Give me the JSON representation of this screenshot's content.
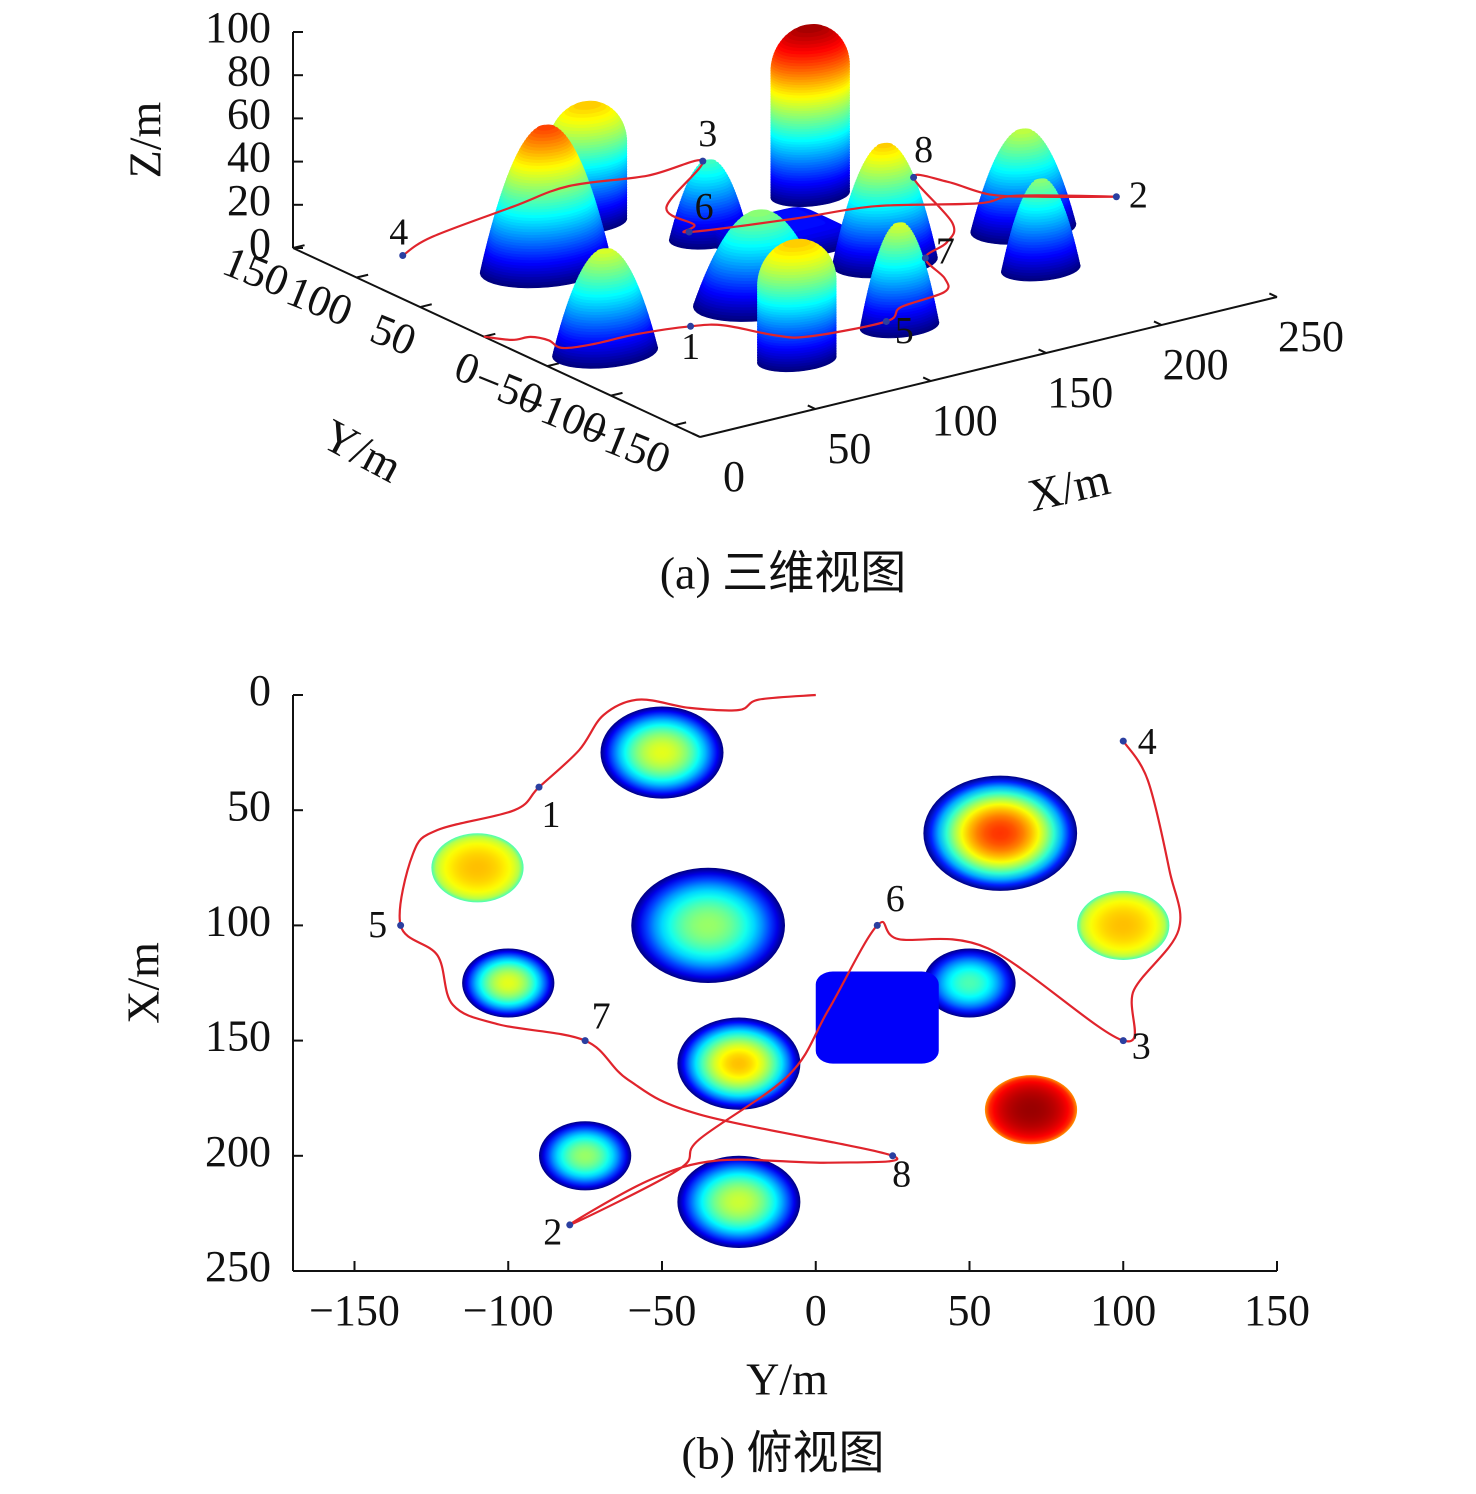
{
  "chart_data": [
    {
      "type": "surface3d",
      "caption": "(a) 三维视图",
      "xlabel": "X/m",
      "ylabel": "Y/m",
      "zlabel": "Z/m",
      "xlim": [
        0,
        250
      ],
      "ylim": [
        -170,
        150
      ],
      "zlim": [
        0,
        100
      ],
      "xticks": [
        0,
        50,
        100,
        150,
        200,
        250
      ],
      "yticks": [
        {
          "value": -150,
          "label": "−150"
        },
        {
          "value": -100,
          "label": "−100"
        },
        {
          "value": -50,
          "label": "−50"
        },
        0,
        50,
        100,
        150
      ],
      "zticks": [
        0,
        20,
        40,
        60,
        80,
        100
      ]
    },
    {
      "type": "topview",
      "caption": "(b) 俯视图",
      "xlabel": "Y/m",
      "ylabel": "X/m",
      "xlim": [
        -170,
        150
      ],
      "ylim": [
        0,
        250
      ],
      "y_inverted": true,
      "xticks": [
        {
          "value": -150,
          "label": "−150"
        },
        {
          "value": -100,
          "label": "−100"
        },
        {
          "value": -50,
          "label": "−50"
        },
        0,
        50,
        100,
        150
      ],
      "yticks": [
        0,
        50,
        100,
        150,
        200,
        250
      ]
    }
  ],
  "scene": {
    "colormap": "jet",
    "clim": [
      0,
      80
    ],
    "path_color": "#e0242c",
    "waypoint_color": "#2b3fa0",
    "waypoints": {
      "labels": [
        "1",
        "2",
        "3",
        "4",
        "5",
        "6",
        "7",
        "8"
      ],
      "Y": [
        -90,
        -80,
        100,
        100,
        -135,
        20,
        -75,
        25
      ],
      "X": [
        40,
        230,
        150,
        20,
        100,
        100,
        150,
        200
      ],
      "Z": [
        19,
        27,
        15,
        5,
        18,
        17,
        18,
        15
      ]
    },
    "path": {
      "Y": [
        0,
        -18.5,
        -25,
        -41,
        -57.6,
        -69,
        -77,
        -90,
        -98,
        -123,
        -131,
        -135,
        -123,
        -118,
        -103,
        -75,
        -61,
        -38,
        25,
        4,
        -31.6,
        -54,
        -80,
        -44.6,
        -38,
        -8.8,
        4,
        20,
        27,
        56,
        100,
        103.5,
        118,
        115,
        108,
        100
      ],
      "X": [
        0,
        2,
        6.5,
        5.6,
        2,
        8.7,
        24,
        40,
        50,
        58.6,
        69,
        100,
        113,
        134.5,
        143,
        150,
        167,
        182,
        200,
        203,
        202,
        210.5,
        230,
        206,
        193,
        165,
        137,
        100,
        106,
        110,
        150,
        128,
        102,
        76,
        37,
        20
      ],
      "Z": [
        0,
        3,
        5,
        8,
        10,
        13,
        16,
        19,
        19,
        19,
        18,
        18,
        18,
        18,
        18,
        18,
        17,
        16,
        15,
        18,
        22,
        25,
        27,
        24,
        22,
        20,
        18,
        17,
        17,
        16,
        15,
        13,
        11,
        9,
        7,
        5
      ]
    },
    "obstacles": [
      {
        "shape": "paraboloid",
        "Y": -50,
        "X": 25,
        "r": 20,
        "h": 48
      },
      {
        "shape": "paraboloid",
        "Y": 60,
        "X": 60,
        "r": 25,
        "h": 66
      },
      {
        "shape": "cylinder",
        "Y": -110,
        "X": 75,
        "r": 15,
        "h": 55
      },
      {
        "shape": "paraboloid",
        "Y": -35,
        "X": 100,
        "r": 25,
        "h": 42
      },
      {
        "shape": "cylinder",
        "Y": 100,
        "X": 100,
        "r": 15,
        "h": 55
      },
      {
        "shape": "paraboloid",
        "Y": -100,
        "X": 125,
        "r": 15,
        "h": 48
      },
      {
        "shape": "paraboloid",
        "Y": 50,
        "X": 125,
        "r": 15,
        "h": 36
      },
      {
        "shape": "box",
        "Y": 20,
        "X": 140,
        "r": 20,
        "h": 12
      },
      {
        "shape": "paraboloid",
        "Y": -25,
        "X": 160,
        "r": 20,
        "h": 55
      },
      {
        "shape": "cylinder",
        "Y": 70,
        "X": 180,
        "r": 15,
        "h": 78
      },
      {
        "shape": "paraboloid",
        "Y": -75,
        "X": 200,
        "r": 15,
        "h": 42
      },
      {
        "shape": "paraboloid",
        "Y": -25,
        "X": 220,
        "r": 20,
        "h": 46
      }
    ]
  }
}
